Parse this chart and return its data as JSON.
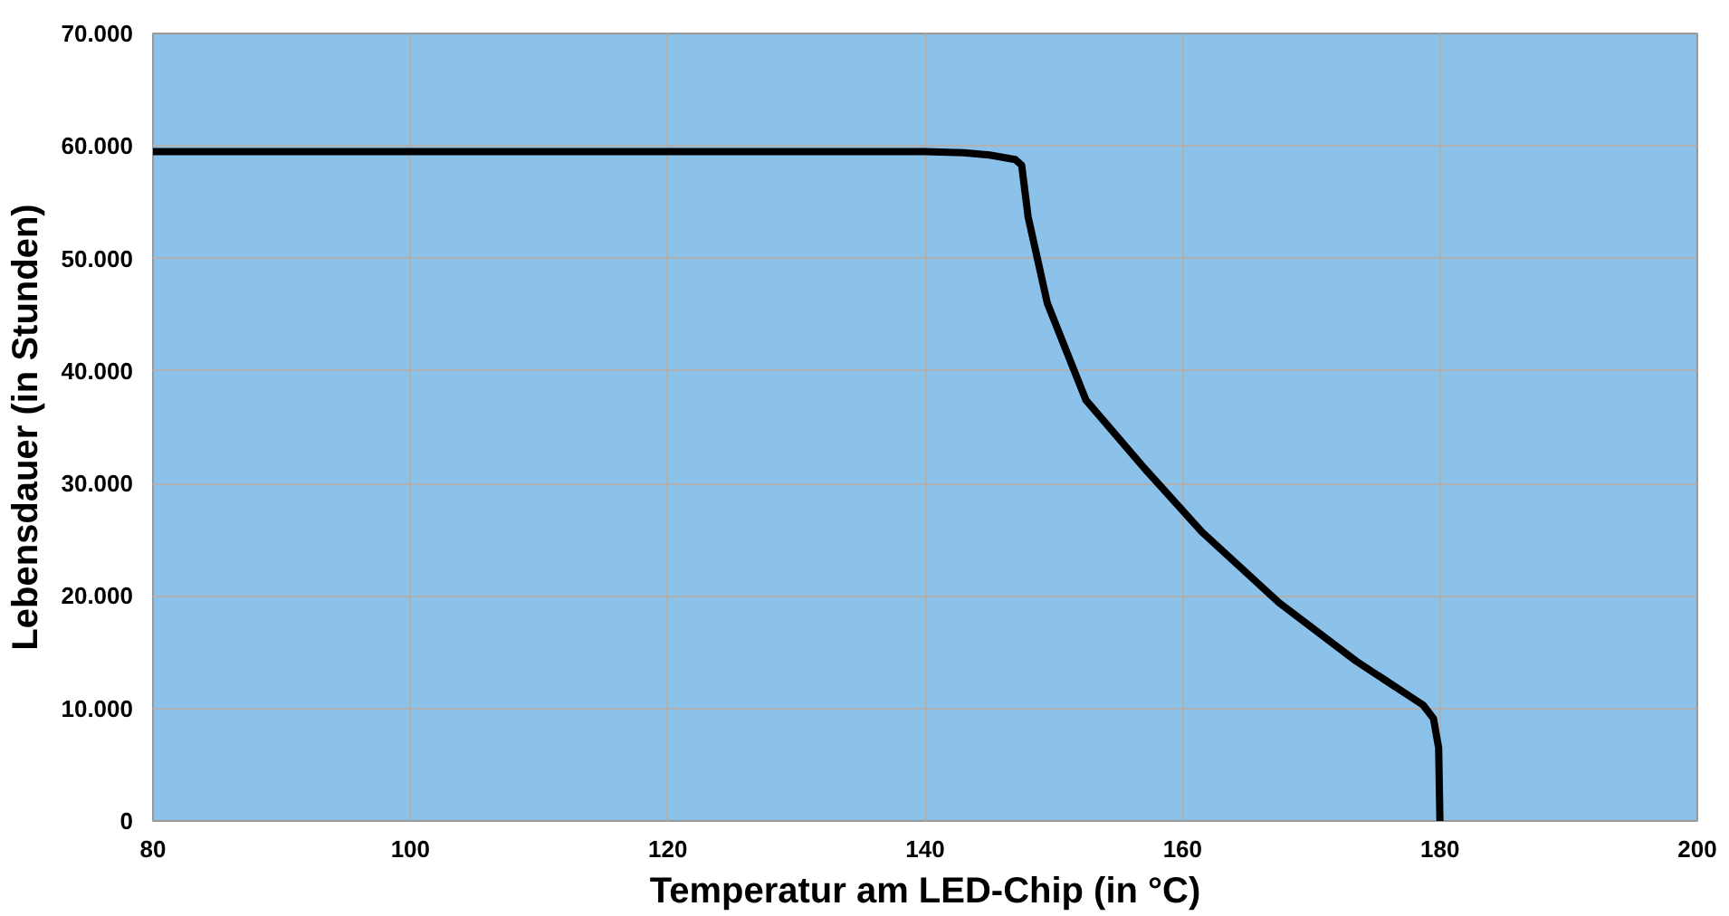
{
  "chart_data": {
    "type": "line",
    "xlabel": "Temperatur am LED-Chip (in °C)",
    "ylabel": "Lebensdauer (in Stunden)",
    "x": [
      80,
      100,
      120,
      140,
      143,
      145,
      147,
      147.5,
      148,
      149.5,
      152.5,
      157,
      161.5,
      167.5,
      173.5,
      178.7,
      179.5,
      179.9,
      180
    ],
    "series": [
      {
        "color": "#000000",
        "values": [
          59500,
          59500,
          59500,
          59500,
          59400,
          59200,
          58800,
          58300,
          53700,
          46000,
          37400,
          31400,
          25700,
          19400,
          14200,
          10300,
          9100,
          6500,
          0
        ]
      }
    ],
    "xlim": [
      80,
      200
    ],
    "xticks": [
      80,
      100,
      120,
      140,
      160,
      180,
      200
    ],
    "ylim": [
      0,
      70000
    ],
    "yticks": [
      0,
      {
        "value": 10000,
        "label": "10.000"
      },
      {
        "value": 20000,
        "label": "20.000"
      },
      {
        "value": 30000,
        "label": "30.000"
      },
      {
        "value": 40000,
        "label": "40.000"
      },
      {
        "value": 50000,
        "label": "50.000"
      },
      {
        "value": 60000,
        "label": "60.000"
      },
      {
        "value": 70000,
        "label": "70.000"
      }
    ],
    "grid": true,
    "marker": "none",
    "line_style": "solid"
  }
}
